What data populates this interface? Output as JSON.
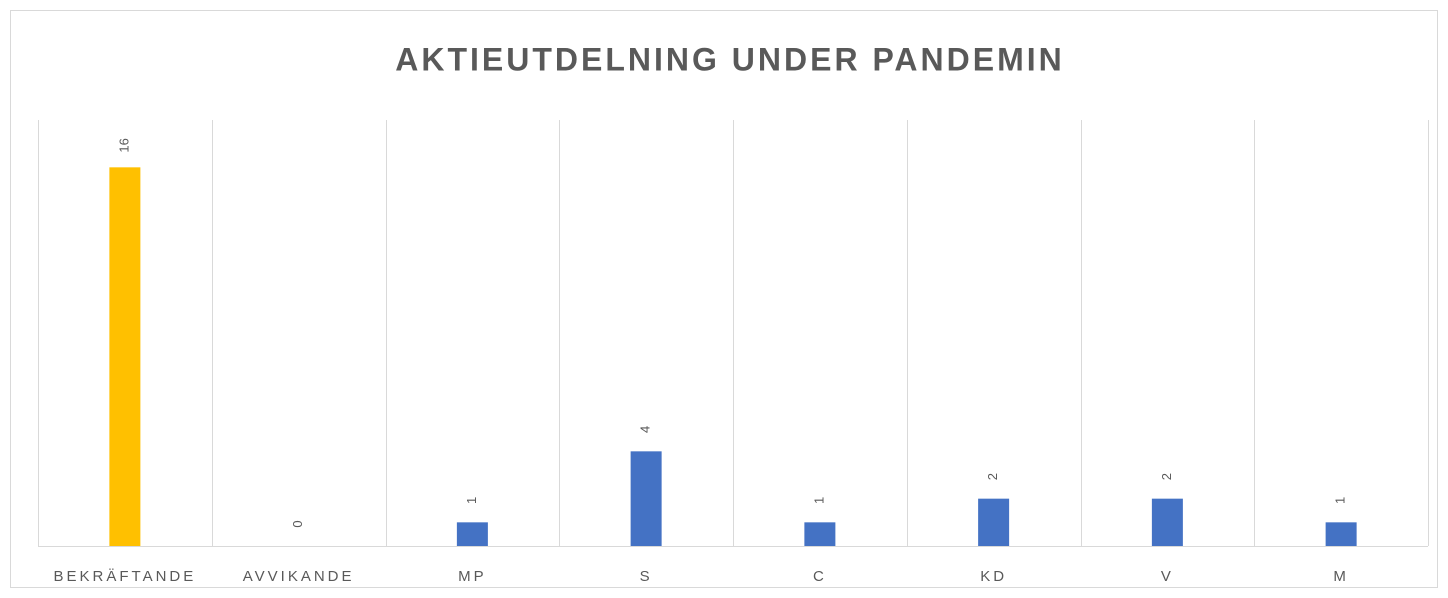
{
  "chart_data": {
    "type": "bar",
    "title": "AKTIEUTDELNING UNDER PANDEMIN",
    "categories": [
      "BEKRÄFTANDE",
      "AVVIKANDE",
      "MP",
      "S",
      "C",
      "KD",
      "V",
      "M"
    ],
    "values": [
      16,
      0,
      1,
      4,
      1,
      2,
      2,
      1
    ],
    "colors": [
      "#ffc000",
      "#4472c4",
      "#4472c4",
      "#4472c4",
      "#4472c4",
      "#4472c4",
      "#4472c4",
      "#4472c4"
    ],
    "ylim": [
      0,
      18
    ],
    "grid": true
  }
}
